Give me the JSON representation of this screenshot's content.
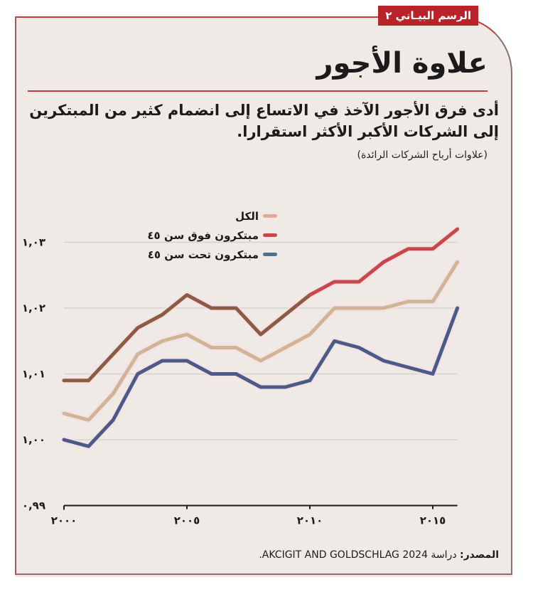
{
  "header": {
    "badge": "الرسم البيـاني ٢",
    "title": "علاوة الأجور",
    "subtitle": "أدى فرق الأجور الآخذ في الاتساع إلى انضمام كثير من المبتكرين إلى الشركات الأكبر الأكثر استقرارا.",
    "unit_note": "(علاوات أرباح الشركات الرائدة)"
  },
  "footer": {
    "source_label": "المصدر:",
    "source_text": "دراسة AKCIGIT AND GOLDSCHLAG 2024."
  },
  "colors": {
    "frame_top": "#c0393f",
    "badge_bg": "#b8232a",
    "background": "#efeae6",
    "all": "#cfb596",
    "all_swatch": "#e3a996",
    "over45": "#c8474b",
    "over45_dark": "#8d5a43",
    "under45": "#4b5b88",
    "under45_swatch": "#4d6e8e",
    "grid": "#d6d2ce"
  },
  "legend": [
    {
      "key": "all",
      "label": "الكل"
    },
    {
      "key": "over45",
      "label": "مبتكرون فوق سن ٤٥"
    },
    {
      "key": "under45",
      "label": "مبتكرون تحت سن ٤٥"
    }
  ],
  "axis": {
    "y_ticks": [
      {
        "value": 0.99,
        "label": "٠,٩٩"
      },
      {
        "value": 1.0,
        "label": "١,٠٠"
      },
      {
        "value": 1.01,
        "label": "١,٠١"
      },
      {
        "value": 1.02,
        "label": "١,٠٢"
      },
      {
        "value": 1.03,
        "label": "١,٠٣"
      }
    ],
    "x_ticks": [
      {
        "value": 2000,
        "label": "٢٠٠٠"
      },
      {
        "value": 2005,
        "label": "٢٠٠٥"
      },
      {
        "value": 2010,
        "label": "٢٠١٠"
      },
      {
        "value": 2015,
        "label": "٢٠١٥"
      }
    ]
  },
  "chart_data": {
    "type": "line",
    "title": "علاوة الأجور",
    "subtitle": "أدى فرق الأجور الآخذ في الاتساع إلى انضمام كثير من المبتكرين إلى الشركات الأكبر الأكثر استقرارا.",
    "xlabel": "",
    "ylabel": "(علاوات أرباح الشركات الرائدة)",
    "x": [
      2000,
      2001,
      2002,
      2003,
      2004,
      2005,
      2006,
      2007,
      2008,
      2009,
      2010,
      2011,
      2012,
      2013,
      2014,
      2015,
      2016
    ],
    "series": [
      {
        "name": "الكل",
        "key": "all",
        "values": [
          1.004,
          1.003,
          1.007,
          1.013,
          1.015,
          1.016,
          1.014,
          1.014,
          1.012,
          1.014,
          1.016,
          1.02,
          1.02,
          1.02,
          1.021,
          1.021,
          1.027
        ]
      },
      {
        "name": "مبتكرون فوق سن ٤٥",
        "key": "over45",
        "values": [
          1.009,
          1.009,
          1.013,
          1.017,
          1.019,
          1.022,
          1.02,
          1.02,
          1.016,
          1.019,
          1.022,
          1.024,
          1.024,
          1.027,
          1.029,
          1.029,
          1.032
        ]
      },
      {
        "name": "مبتكرون تحت سن ٤٥",
        "key": "under45",
        "values": [
          1.0,
          0.999,
          1.003,
          1.01,
          1.012,
          1.012,
          1.01,
          1.01,
          1.008,
          1.008,
          1.009,
          1.015,
          1.014,
          1.012,
          1.011,
          1.01,
          1.02
        ]
      }
    ],
    "ylim": [
      0.99,
      1.03
    ],
    "xlim": [
      2000,
      2016
    ],
    "y_tick_labels": [
      "٠,٩٩",
      "١,٠٠",
      "١,٠١",
      "١,٠٢",
      "١,٠٣"
    ],
    "x_tick_labels": [
      "٢٠٠٠",
      "٢٠٠٥",
      "٢٠١٠",
      "٢٠١٥"
    ],
    "grid": true,
    "legend_position": "top-center",
    "source": "المصدر: دراسة AKCIGIT AND GOLDSCHLAG 2024."
  }
}
